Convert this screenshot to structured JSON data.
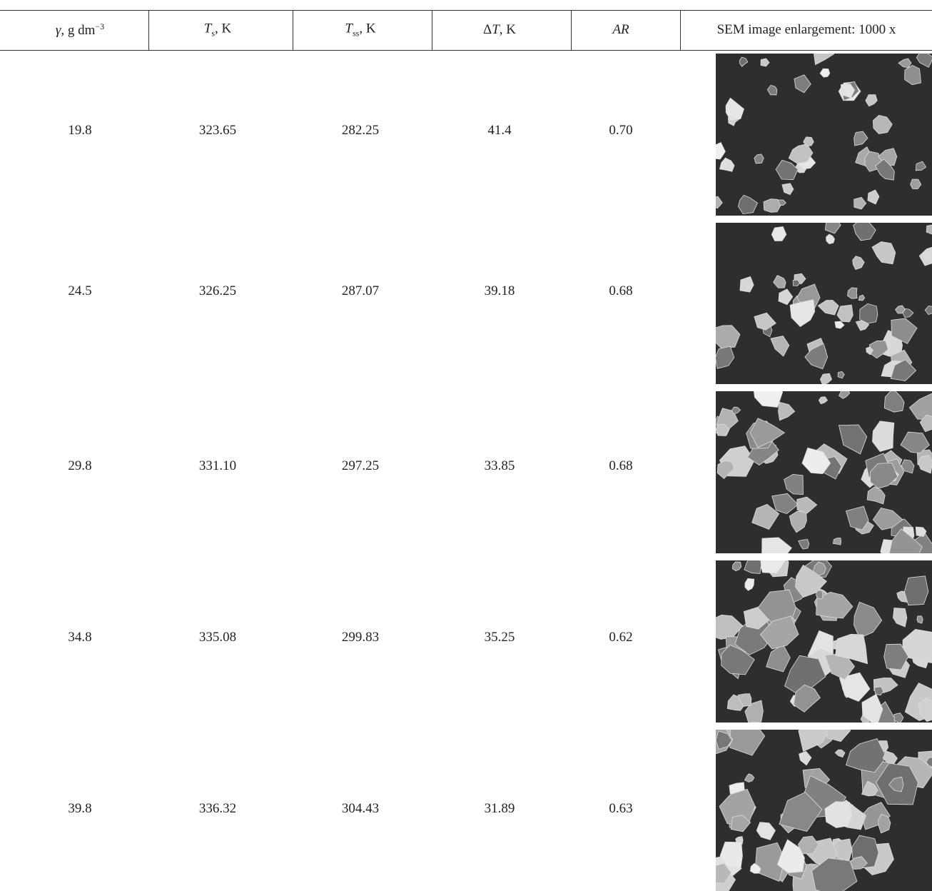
{
  "table": {
    "header": [
      [
        "γ",
        ", g dm",
        "−3"
      ],
      [
        "T",
        "s",
        ", K"
      ],
      [
        "T",
        "ss",
        ", K"
      ],
      [
        "Δ",
        "T",
        ", K"
      ],
      [
        "AR"
      ],
      [
        "SEM image enlargement: 1000 x"
      ]
    ],
    "rows": [
      [
        "19.8",
        "323.65",
        "282.25",
        "41.4",
        "0.70"
      ],
      [
        "24.5",
        "326.25",
        "287.07",
        "39.18",
        "0.68"
      ],
      [
        "29.8",
        "331.10",
        "297.25",
        "33.85",
        "0.68"
      ],
      [
        "34.8",
        "335.08",
        "299.83",
        "35.25",
        "0.62"
      ],
      [
        "39.8",
        "336.32",
        "304.43",
        "31.89",
        "0.63"
      ]
    ]
  }
}
